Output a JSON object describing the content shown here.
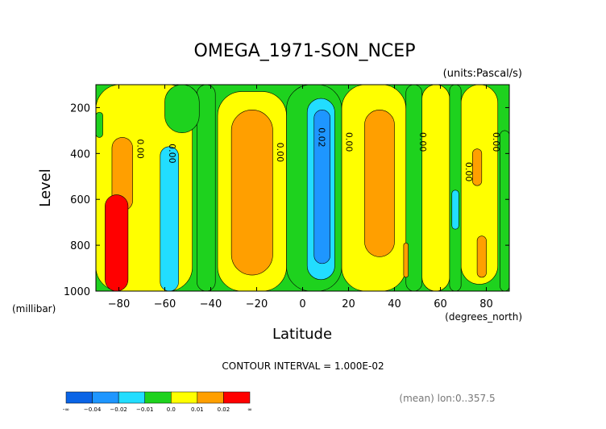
{
  "chart_data": {
    "type": "heatmap",
    "title": "OMEGA_1971-SON_NCEP",
    "units_label": "(units:Pascal/s)",
    "xlabel": "Latitude",
    "ylabel": "Level",
    "x_unit_label": "(degrees_north)",
    "y_unit_label": "(millibar)",
    "xlim": [
      -90,
      90
    ],
    "ylim": [
      1000,
      100
    ],
    "x_ticks": [
      -80,
      -60,
      -40,
      -20,
      0,
      20,
      40,
      60,
      80
    ],
    "y_ticks": [
      200,
      400,
      600,
      800,
      1000
    ],
    "contour_interval_text": "CONTOUR INTERVAL = 1.000E-02",
    "footnote": "(mean) lon:0..357.5",
    "colorbar": {
      "labels": [
        "-∞",
        "−0.04",
        "−0.02",
        "−0.01",
        "0.0",
        "0.01",
        "0.02",
        "∞"
      ],
      "colors": [
        "#0a64e6",
        "#1e96ff",
        "#22ddff",
        "#1ed21e",
        "#ffff00",
        "#ff9f00",
        "#ff0000"
      ]
    },
    "contour_labels": [
      {
        "text": "0.00",
        "lat": -72,
        "lev": 380
      },
      {
        "text": "0.00",
        "lat": -58,
        "lev": 400
      },
      {
        "text": "0.00",
        "lat": -11,
        "lev": 395
      },
      {
        "text": "0.02",
        "lat": 7,
        "lev": 330
      },
      {
        "text": "0.00",
        "lat": 19,
        "lev": 350
      },
      {
        "text": "0.00",
        "lat": 51,
        "lev": 350
      },
      {
        "text": "0.00",
        "lat": 71,
        "lev": 480
      },
      {
        "text": "0.00",
        "lat": 83,
        "lev": 350
      }
    ],
    "regions": [
      {
        "level": "yellow",
        "lat": [
          -90,
          -48
        ],
        "lev": [
          100,
          1000
        ]
      },
      {
        "level": "yellow",
        "lat": [
          -37,
          -7
        ],
        "lev": [
          130,
          1000
        ]
      },
      {
        "level": "yellow",
        "lat": [
          17,
          45
        ],
        "lev": [
          100,
          1000
        ]
      },
      {
        "level": "yellow",
        "lat": [
          52,
          64
        ],
        "lev": [
          100,
          1000
        ]
      },
      {
        "level": "yellow",
        "lat": [
          69,
          85
        ],
        "lev": [
          100,
          970
        ]
      },
      {
        "level": "green",
        "lat": [
          -90,
          -87
        ],
        "lev": [
          220,
          330
        ]
      },
      {
        "level": "green",
        "lat": [
          -46,
          -38
        ],
        "lev": [
          100,
          1000
        ]
      },
      {
        "level": "green",
        "lat": [
          -60,
          -45
        ],
        "lev": [
          100,
          310
        ]
      },
      {
        "level": "green",
        "lat": [
          -7,
          17
        ],
        "lev": [
          100,
          1000
        ]
      },
      {
        "level": "green",
        "lat": [
          45,
          52
        ],
        "lev": [
          100,
          1000
        ]
      },
      {
        "level": "green",
        "lat": [
          64,
          69
        ],
        "lev": [
          100,
          1000
        ]
      },
      {
        "level": "green",
        "lat": [
          86,
          90
        ],
        "lev": [
          300,
          1000
        ]
      },
      {
        "level": "cyan",
        "lat": [
          -62,
          -54
        ],
        "lev": [
          370,
          1000
        ]
      },
      {
        "level": "cyan",
        "lat": [
          2,
          14
        ],
        "lev": [
          160,
          950
        ]
      },
      {
        "level": "cyan",
        "lat": [
          65,
          68
        ],
        "lev": [
          560,
          730
        ]
      },
      {
        "level": "blue",
        "lat": [
          5,
          12
        ],
        "lev": [
          210,
          880
        ]
      },
      {
        "level": "orange",
        "lat": [
          -83,
          -74
        ],
        "lev": [
          330,
          650
        ]
      },
      {
        "level": "orange",
        "lat": [
          -31,
          -13
        ],
        "lev": [
          210,
          930
        ]
      },
      {
        "level": "orange",
        "lat": [
          27,
          40
        ],
        "lev": [
          210,
          850
        ]
      },
      {
        "level": "orange",
        "lat": [
          74,
          78
        ],
        "lev": [
          380,
          540
        ]
      },
      {
        "level": "orange",
        "lat": [
          76,
          80
        ],
        "lev": [
          760,
          940
        ]
      },
      {
        "level": "orange",
        "lat": [
          44,
          46
        ],
        "lev": [
          790,
          940
        ]
      },
      {
        "level": "red",
        "lat": [
          -86,
          -76
        ],
        "lev": [
          580,
          1000
        ]
      }
    ]
  }
}
